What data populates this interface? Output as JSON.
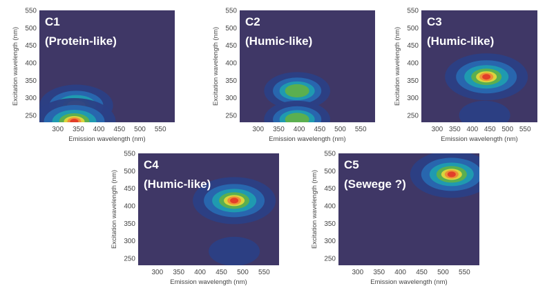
{
  "chart_data": [
    {
      "type": "heatmap",
      "title": "C1",
      "subtitle": "(Protein-like)",
      "xlabel": "Emission wavelength (nm)",
      "ylabel": "Excitation wavelength (nm)",
      "xlim": [
        255,
        585
      ],
      "ylim": [
        230,
        550
      ],
      "xticks": [
        "300",
        "350",
        "400",
        "450",
        "500",
        "550"
      ],
      "yticks": [
        "250",
        "300",
        "350",
        "400",
        "450",
        "500",
        "550"
      ],
      "peaks": [
        {
          "em": 345,
          "ex": 278,
          "intensity": 0.75
        },
        {
          "em": 340,
          "ex": 232,
          "intensity": 1.0
        }
      ]
    },
    {
      "type": "heatmap",
      "title": "C2",
      "subtitle": "(Humic-like)",
      "xlabel": "Emission wavelength (nm)",
      "ylabel": "Excitation wavelength (nm)",
      "xlim": [
        255,
        585
      ],
      "ylim": [
        230,
        550
      ],
      "xticks": [
        "300",
        "350",
        "400",
        "450",
        "500",
        "550"
      ],
      "yticks": [
        "250",
        "300",
        "350",
        "400",
        "450",
        "500",
        "550"
      ],
      "peaks": [
        {
          "em": 395,
          "ex": 320,
          "intensity": 0.55
        },
        {
          "em": 395,
          "ex": 238,
          "intensity": 0.55
        }
      ]
    },
    {
      "type": "heatmap",
      "title": "C3",
      "subtitle": "(Humic-like)",
      "xlabel": "Emission wavelength (nm)",
      "ylabel": "Excitation wavelength (nm)",
      "xlim": [
        255,
        585
      ],
      "ylim": [
        230,
        550
      ],
      "xticks": [
        "300",
        "350",
        "400",
        "450",
        "500",
        "550"
      ],
      "yticks": [
        "250",
        "300",
        "350",
        "400",
        "450",
        "500",
        "550"
      ],
      "peaks": [
        {
          "em": 440,
          "ex": 360,
          "intensity": 1.0
        },
        {
          "em": 435,
          "ex": 250,
          "intensity": 0.15
        }
      ]
    },
    {
      "type": "heatmap",
      "title": "C4",
      "subtitle": "(Humic-like)",
      "xlabel": "Emission wavelength (nm)",
      "ylabel": "Excitation wavelength (nm)",
      "xlim": [
        255,
        585
      ],
      "ylim": [
        230,
        550
      ],
      "xticks": [
        "300",
        "350",
        "400",
        "450",
        "500",
        "550"
      ],
      "yticks": [
        "250",
        "300",
        "350",
        "400",
        "450",
        "500",
        "550"
      ],
      "peaks": [
        {
          "em": 480,
          "ex": 415,
          "intensity": 1.0
        },
        {
          "em": 480,
          "ex": 270,
          "intensity": 0.15
        }
      ]
    },
    {
      "type": "heatmap",
      "title": "C5",
      "subtitle": "(Sewege ?)",
      "xlabel": "Emission wavelength (nm)",
      "ylabel": "Excitation wavelength (nm)",
      "xlim": [
        255,
        585
      ],
      "ylim": [
        230,
        550
      ],
      "xticks": [
        "300",
        "350",
        "400",
        "450",
        "500",
        "550"
      ],
      "yticks": [
        "250",
        "300",
        "350",
        "400",
        "450",
        "500",
        "550"
      ],
      "peaks": [
        {
          "em": 520,
          "ex": 490,
          "intensity": 1.0
        }
      ]
    }
  ],
  "colors": {
    "background": "#3f3766",
    "levels": [
      "#2b3f85",
      "#2868b0",
      "#1f9db0",
      "#5fb04a",
      "#e2d63c",
      "#ee8a38",
      "#e23a28"
    ]
  }
}
